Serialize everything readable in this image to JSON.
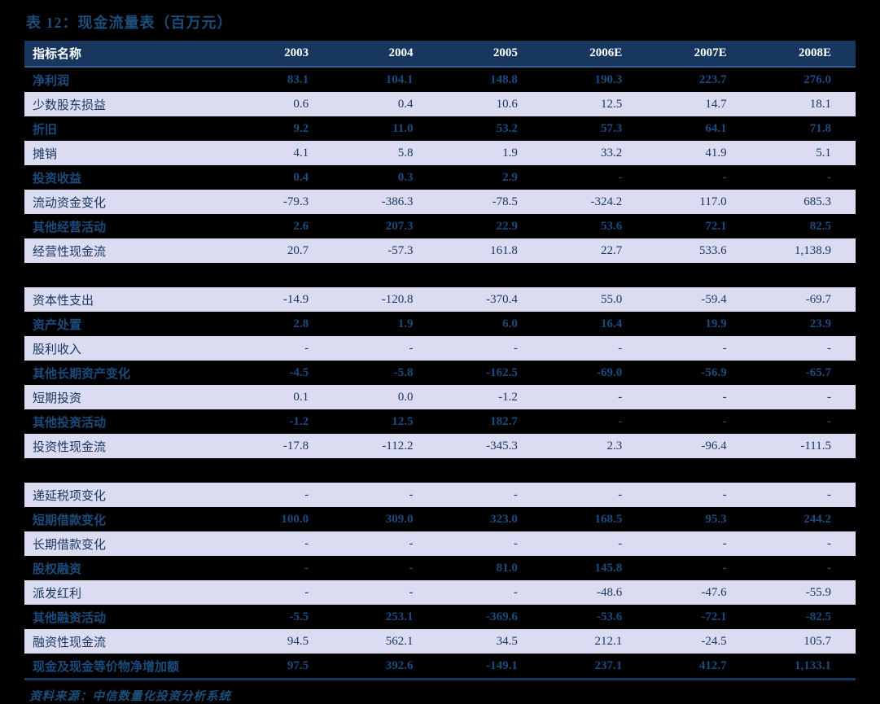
{
  "title": "表 12：现金流量表（百万元）",
  "source": "资料来源：中信数量化投资分析系统",
  "colors": {
    "page_bg": "#000000",
    "header_bg": "#17375E",
    "header_text": "#FFFFFF",
    "row_dark_bg": "#000000",
    "row_dark_text": "#1C4B7D",
    "row_light_bg": "#DBDBF2",
    "row_light_text": "#17375E",
    "title_text": "#1D4E79",
    "bottom_border": "#17375E"
  },
  "chart_data": {
    "type": "table",
    "title": "表 12：现金流量表（百万元）",
    "columns": [
      "指标名称",
      "2003",
      "2004",
      "2005",
      "2006E",
      "2007E",
      "2008E"
    ],
    "rows": [
      {
        "label": "净利润",
        "values": [
          "83.1",
          "104.1",
          "148.8",
          "190.3",
          "223.7",
          "276.0"
        ],
        "shade": "dark"
      },
      {
        "label": "少数股东损益",
        "values": [
          "0.6",
          "0.4",
          "10.6",
          "12.5",
          "14.7",
          "18.1"
        ],
        "shade": "light"
      },
      {
        "label": "折旧",
        "values": [
          "9.2",
          "11.0",
          "53.2",
          "57.3",
          "64.1",
          "71.8"
        ],
        "shade": "dark"
      },
      {
        "label": "摊销",
        "values": [
          "4.1",
          "5.8",
          "1.9",
          "33.2",
          "41.9",
          "5.1"
        ],
        "shade": "light"
      },
      {
        "label": "投资收益",
        "values": [
          "0.4",
          "0.3",
          "2.9",
          "-",
          "-",
          "-"
        ],
        "shade": "dark"
      },
      {
        "label": "流动资金变化",
        "values": [
          "-79.3",
          "-386.3",
          "-78.5",
          "-324.2",
          "117.0",
          "685.3"
        ],
        "shade": "light"
      },
      {
        "label": "其他经营活动",
        "values": [
          "2.6",
          "207.3",
          "22.9",
          "53.6",
          "72.1",
          "82.5"
        ],
        "shade": "dark"
      },
      {
        "label": "经营性现金流",
        "values": [
          "20.7",
          "-57.3",
          "161.8",
          "22.7",
          "533.6",
          "1,138.9"
        ],
        "shade": "light"
      },
      {
        "label": "",
        "values": [
          "",
          "",
          "",
          "",
          "",
          ""
        ],
        "shade": "spacer"
      },
      {
        "label": "资本性支出",
        "values": [
          "-14.9",
          "-120.8",
          "-370.4",
          "55.0",
          "-59.4",
          "-69.7"
        ],
        "shade": "light"
      },
      {
        "label": "资产处置",
        "values": [
          "2.8",
          "1.9",
          "6.0",
          "16.4",
          "19.9",
          "23.9"
        ],
        "shade": "dark"
      },
      {
        "label": "股利收入",
        "values": [
          "-",
          "-",
          "-",
          "-",
          "-",
          "-"
        ],
        "shade": "light"
      },
      {
        "label": "其他长期资产变化",
        "values": [
          "-4.5",
          "-5.8",
          "-162.5",
          "-69.0",
          "-56.9",
          "-65.7"
        ],
        "shade": "dark"
      },
      {
        "label": "短期投资",
        "values": [
          "0.1",
          "0.0",
          "-1.2",
          "-",
          "-",
          "-"
        ],
        "shade": "light"
      },
      {
        "label": "其他投资活动",
        "values": [
          "-1.2",
          "12.5",
          "182.7",
          "-",
          "-",
          "-"
        ],
        "shade": "dark"
      },
      {
        "label": "投资性现金流",
        "values": [
          "-17.8",
          "-112.2",
          "-345.3",
          "2.3",
          "-96.4",
          "-111.5"
        ],
        "shade": "light"
      },
      {
        "label": "",
        "values": [
          "",
          "",
          "",
          "",
          "",
          ""
        ],
        "shade": "spacer"
      },
      {
        "label": "递延税项变化",
        "values": [
          "-",
          "-",
          "-",
          "-",
          "-",
          "-"
        ],
        "shade": "light"
      },
      {
        "label": "短期借款变化",
        "values": [
          "100.0",
          "309.0",
          "323.0",
          "168.5",
          "95.3",
          "244.2"
        ],
        "shade": "dark"
      },
      {
        "label": "长期借款变化",
        "values": [
          "-",
          "-",
          "-",
          "-",
          "-",
          "-"
        ],
        "shade": "light"
      },
      {
        "label": "股权融资",
        "values": [
          "-",
          "-",
          "81.0",
          "145.8",
          "-",
          "-"
        ],
        "shade": "dark"
      },
      {
        "label": "派发红利",
        "values": [
          "-",
          "-",
          "-",
          "-48.6",
          "-47.6",
          "-55.9"
        ],
        "shade": "light"
      },
      {
        "label": "其他融资活动",
        "values": [
          "-5.5",
          "253.1",
          "-369.6",
          "-53.6",
          "-72.1",
          "-82.5"
        ],
        "shade": "dark"
      },
      {
        "label": "融资性现金流",
        "values": [
          "94.5",
          "562.1",
          "34.5",
          "212.1",
          "-24.5",
          "105.7"
        ],
        "shade": "light"
      },
      {
        "label": "现金及现金等价物净增加额",
        "values": [
          "97.5",
          "392.6",
          "-149.1",
          "237.1",
          "412.7",
          "1,133.1"
        ],
        "shade": "dark"
      }
    ]
  }
}
